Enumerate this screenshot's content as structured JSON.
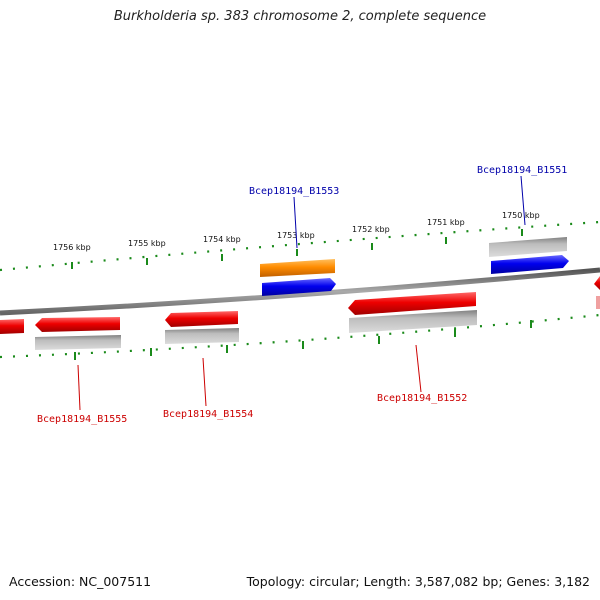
{
  "title": "Burkholderia sp. 383 chromosome 2, complete sequence",
  "footer": {
    "accession": "Accession: NC_007511",
    "summary": "Topology: circular; Length: 3,587,082 bp; Genes: 3,182"
  },
  "scale": {
    "unit": "kbp",
    "tick_labels": [
      "1756 kbp",
      "1755 kbp",
      "1754 kbp",
      "1753 kbp",
      "1752 kbp",
      "1751 kbp",
      "1750 kbp"
    ]
  },
  "colors": {
    "reverse_gene": "#ee0000",
    "forward_gene": "#0000ee",
    "highlight_gene": "#ff8c00",
    "cds": "#b0b0b0",
    "backbone": "#888888",
    "ticks": "#1a8a1a",
    "label_blue": "#0000aa",
    "label_red": "#cc0000"
  },
  "gene_labels": [
    {
      "name": "Bcep18194_B1553",
      "strand": "forward"
    },
    {
      "name": "Bcep18194_B1551",
      "strand": "forward"
    },
    {
      "name": "Bcep18194_B1555",
      "strand": "reverse"
    },
    {
      "name": "Bcep18194_B1554",
      "strand": "reverse"
    },
    {
      "name": "Bcep18194_B1552",
      "strand": "reverse"
    }
  ]
}
